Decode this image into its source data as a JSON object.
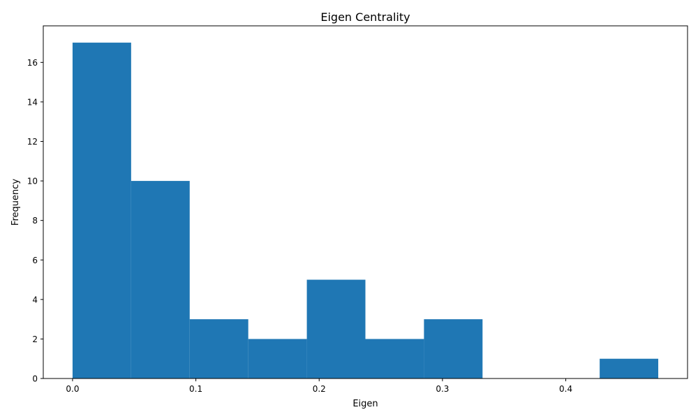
{
  "chart_data": {
    "type": "bar",
    "title": "Eigen Centrality",
    "xlabel": "Eigen",
    "ylabel": "Frequency",
    "bins": [
      {
        "start": 0.0,
        "end": 0.0475,
        "count": 17
      },
      {
        "start": 0.0475,
        "end": 0.095,
        "count": 10
      },
      {
        "start": 0.095,
        "end": 0.1425,
        "count": 3
      },
      {
        "start": 0.1425,
        "end": 0.19,
        "count": 2
      },
      {
        "start": 0.19,
        "end": 0.2375,
        "count": 5
      },
      {
        "start": 0.2375,
        "end": 0.285,
        "count": 2
      },
      {
        "start": 0.285,
        "end": 0.3325,
        "count": 3
      },
      {
        "start": 0.3325,
        "end": 0.38,
        "count": 0
      },
      {
        "start": 0.38,
        "end": 0.4275,
        "count": 0
      },
      {
        "start": 0.4275,
        "end": 0.475,
        "count": 1
      }
    ],
    "xlim": [
      -0.02375,
      0.49875
    ],
    "ylim": [
      0,
      17.85
    ],
    "xticks": [
      0.0,
      0.1,
      0.2,
      0.3,
      0.4
    ],
    "xtick_labels": [
      "0.0",
      "0.1",
      "0.2",
      "0.3",
      "0.4"
    ],
    "yticks": [
      0,
      2,
      4,
      6,
      8,
      10,
      12,
      14,
      16
    ],
    "ytick_labels": [
      "0",
      "2",
      "4",
      "6",
      "8",
      "10",
      "12",
      "14",
      "16"
    ],
    "bar_color": "#1f77b4",
    "grid": false,
    "legend": "none"
  }
}
